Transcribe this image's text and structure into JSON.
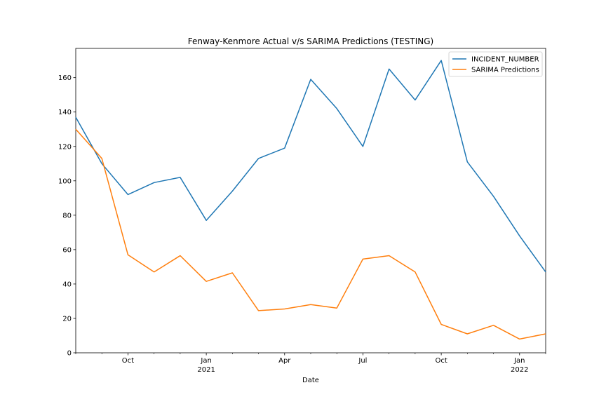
{
  "chart_data": {
    "type": "line",
    "title": "Fenway-Kenmore Actual v/s SARIMA Predictions (TESTING)",
    "xlabel": "Date",
    "ylabel": "",
    "x": [
      "2020-08",
      "2020-09",
      "2020-10",
      "2020-11",
      "2020-12",
      "2021-01",
      "2021-02",
      "2021-03",
      "2021-04",
      "2021-05",
      "2021-06",
      "2021-07",
      "2021-08",
      "2021-09",
      "2021-10",
      "2021-11",
      "2021-12",
      "2022-01",
      "2022-02"
    ],
    "ylim": [
      0,
      177
    ],
    "yticks": [
      0,
      20,
      40,
      60,
      80,
      100,
      120,
      140,
      160
    ],
    "xticks": [
      {
        "index": 2,
        "label": "Oct",
        "sublabel": ""
      },
      {
        "index": 5,
        "label": "Jan",
        "sublabel": "2021"
      },
      {
        "index": 8,
        "label": "Apr",
        "sublabel": ""
      },
      {
        "index": 11,
        "label": "Jul",
        "sublabel": ""
      },
      {
        "index": 14,
        "label": "Oct",
        "sublabel": ""
      },
      {
        "index": 17,
        "label": "Jan",
        "sublabel": "2022"
      }
    ],
    "legend_position": "top-right",
    "series": [
      {
        "name": "INCIDENT_NUMBER",
        "color": "#1f77b4",
        "values": [
          137,
          110,
          92,
          99,
          102,
          77,
          94,
          113,
          119,
          159,
          142,
          120,
          165,
          147,
          170,
          111,
          91,
          68,
          47
        ]
      },
      {
        "name": "SARIMA Predictions",
        "color": "#ff7f0e",
        "values": [
          130,
          113,
          57,
          47,
          56.5,
          41.5,
          46.5,
          24.5,
          25.5,
          28,
          26,
          54.5,
          56.5,
          47,
          16.5,
          11,
          16,
          8,
          11
        ]
      }
    ]
  }
}
